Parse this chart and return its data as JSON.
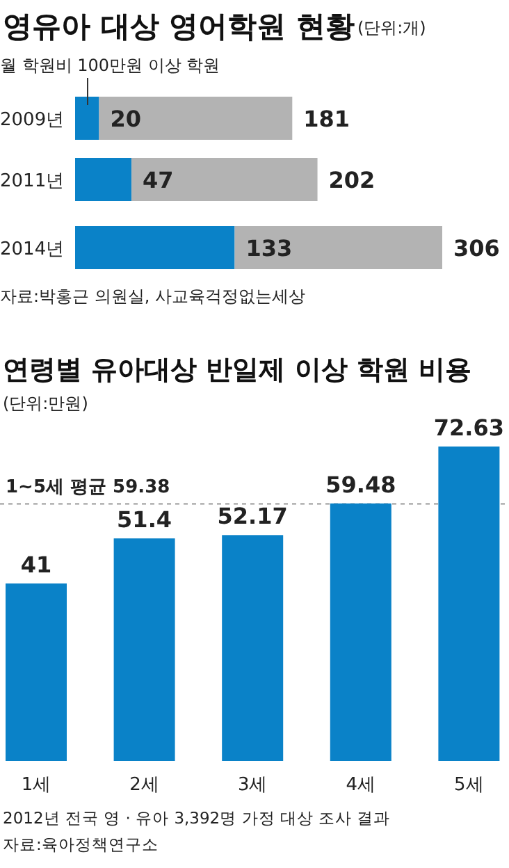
{
  "chart_data": [
    {
      "type": "bar",
      "orientation": "horizontal",
      "stacked": true,
      "title": "영유아 대상 영어학원 현황",
      "subtitle": "(단위:개)",
      "categories": [
        "2009년",
        "2011년",
        "2014년"
      ],
      "series": [
        {
          "name": "월 학원비 100만원 이상 학원",
          "color": "#0a82c8",
          "values": [
            20,
            47,
            133
          ],
          "value_labels": [
            "20",
            "47",
            "133"
          ]
        },
        {
          "color": "#b3b3b3",
          "values": [
            161,
            155,
            173
          ]
        }
      ],
      "totals": [
        "181",
        "202",
        "306"
      ],
      "annotations": [
        "자료:박홍근 의원실, 사교육걱정없는세상"
      ]
    },
    {
      "type": "bar",
      "title": "연령별 유아대상 반일제 이상 학원 비용",
      "subtitle": "(단위:만원)",
      "categories": [
        "1세",
        "2세",
        "3세",
        "4세",
        "5세"
      ],
      "values": [
        41,
        51.4,
        52.17,
        59.48,
        72.63
      ],
      "color": "#0a82c8",
      "data_labels": true,
      "ref_lines": [
        {
          "axis": "y",
          "value": 59.38,
          "label": "1~5세 평균 59.38",
          "color": "#999999",
          "line_style": "dashed"
        }
      ],
      "annotations": [
        "2012년 전국 영 · 유아 3,392명 가정 대상 조사 결과",
        "자료:육아정책연구소"
      ]
    }
  ]
}
